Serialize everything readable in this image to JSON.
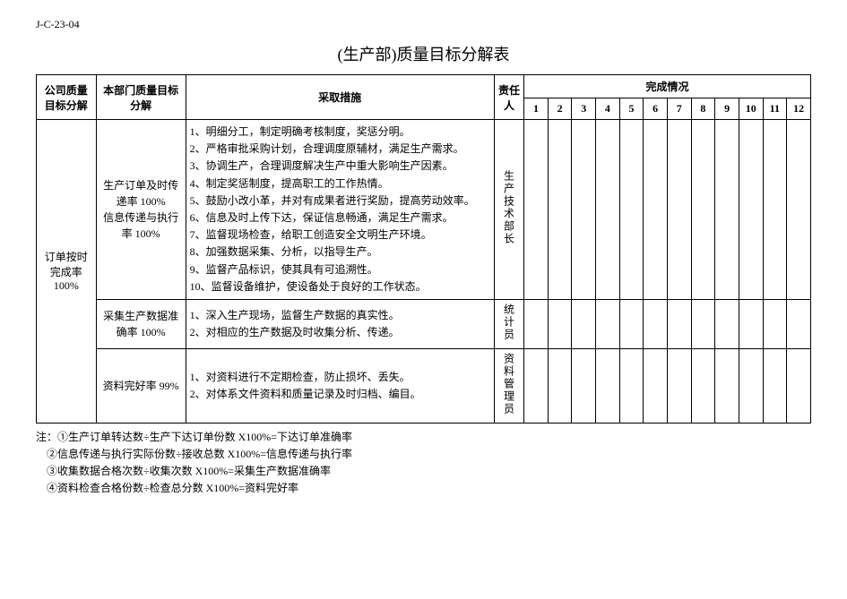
{
  "doc_id": "J-C-23-04",
  "title": "(生产部)质量目标分解表",
  "columns": {
    "company_target": "公司质量目标分解",
    "dept_target": "本部门质量目标分解",
    "measures": "采取措施",
    "owner": "责任人",
    "completion": "完成情况"
  },
  "months": [
    "1",
    "2",
    "3",
    "4",
    "5",
    "6",
    "7",
    "8",
    "9",
    "10",
    "11",
    "12"
  ],
  "company_target_value": "订单按时完成率 100%",
  "rows": [
    {
      "dept_target": "生产订单及时传递率 100%\n信息传递与执行率 100%",
      "measures": "1、明细分工，制定明确考核制度，奖惩分明。\n2、严格审批采购计划，合理调度原辅材，满足生产需求。\n3、协调生产，合理调度解决生产中重大影响生产因素。\n4、制定奖惩制度，提高职工的工作热情。\n5、鼓励小改小革，并对有成果者进行奖励，提高劳动效率。\n6、信息及时上传下达，保证信息畅通，满足生产需求。\n7、监督现场检查，给职工创造安全文明生产环境。\n8、加强数据采集、分析，以指导生产。\n9、监督产品标识，使其具有可追溯性。\n10、监督设备维护，使设备处于良好的工作状态。",
      "owner": "生产技术部长"
    },
    {
      "dept_target": "采集生产数据准确率 100%",
      "measures": "1、深入生产现场，监督生产数据的真实性。\n2、对相应的生产数据及时收集分析、传递。",
      "owner": "统计员"
    },
    {
      "dept_target": "资料完好率 99%",
      "measures": "1、对资料进行不定期检查，防止损坏、丢失。\n2、对体系文件资料和质量记录及时归档、编目。",
      "owner": "资料管理员"
    }
  ],
  "notes": [
    "注：①生产订单转达数÷生产下达订单份数 X100%=下达订单准确率",
    "　②信息传递与执行实际份数÷接收总数 X100%=信息传递与执行率",
    "　③收集数据合格次数÷收集次数 X100%=采集生产数据准确率",
    "　④资料检查合格份数÷检查总分数 X100%=资料完好率"
  ],
  "style": {
    "page_bg": "#ffffff",
    "text_color": "#000000",
    "border_color": "#000000",
    "title_fontsize": 18,
    "body_fontsize": 12,
    "notes_fontsize": 12
  }
}
